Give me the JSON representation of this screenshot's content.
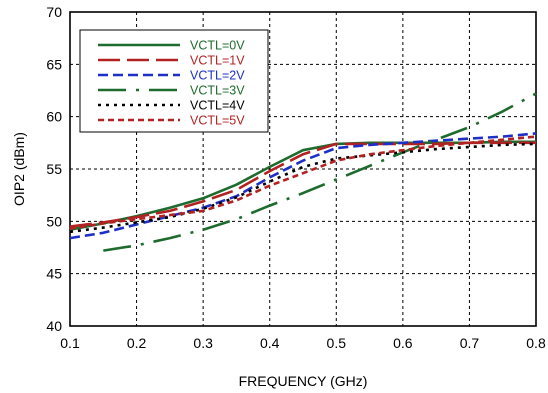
{
  "chart_data": {
    "type": "line",
    "title": "",
    "xlabel": "FREQUENCY (GHz)",
    "ylabel": "OIP2 (dBm)",
    "xlim": [
      0.1,
      0.8
    ],
    "ylim": [
      40,
      70
    ],
    "xticks": [
      "0.1",
      "0.2",
      "0.3",
      "0.4",
      "0.5",
      "0.6",
      "0.7",
      "0.8"
    ],
    "yticks": [
      "40",
      "45",
      "50",
      "55",
      "60",
      "65",
      "70"
    ],
    "grid": true,
    "legend_position": "top-left",
    "series": [
      {
        "name": "VCTL=0V",
        "color": "#1e6b2e",
        "dash": "solid",
        "x": [
          0.1,
          0.15,
          0.2,
          0.25,
          0.3,
          0.35,
          0.4,
          0.45,
          0.5,
          0.55,
          0.6,
          0.65,
          0.7,
          0.75,
          0.8
        ],
        "y": [
          49.2,
          49.8,
          50.5,
          51.3,
          52.2,
          53.5,
          55.2,
          56.8,
          57.4,
          57.5,
          57.5,
          57.5,
          57.5,
          57.6,
          57.6
        ]
      },
      {
        "name": "VCTL=1V",
        "color": "#b22222",
        "dash": "long-dash",
        "x": [
          0.1,
          0.15,
          0.2,
          0.25,
          0.3,
          0.35,
          0.4,
          0.45,
          0.5,
          0.55,
          0.6,
          0.65,
          0.7,
          0.75,
          0.8
        ],
        "y": [
          49.5,
          49.9,
          50.4,
          51.0,
          51.9,
          53.0,
          54.8,
          56.4,
          57.4,
          57.4,
          57.4,
          57.4,
          57.5,
          57.5,
          57.5
        ]
      },
      {
        "name": "VCTL=2V",
        "color": "#1e2fc8",
        "dash": "medium-dash",
        "x": [
          0.1,
          0.15,
          0.2,
          0.25,
          0.3,
          0.35,
          0.4,
          0.45,
          0.5,
          0.55,
          0.6,
          0.65,
          0.7,
          0.75,
          0.8
        ],
        "y": [
          48.4,
          48.9,
          49.7,
          50.5,
          51.3,
          52.4,
          54.2,
          55.8,
          57.0,
          57.3,
          57.5,
          57.7,
          57.9,
          58.1,
          58.4
        ]
      },
      {
        "name": "VCTL=3V",
        "color": "#1e6b2e",
        "dash": "long-dash-dot",
        "x": [
          0.15,
          0.2,
          0.25,
          0.3,
          0.35,
          0.4,
          0.45,
          0.5,
          0.55,
          0.6,
          0.65,
          0.7,
          0.75,
          0.8
        ],
        "y": [
          47.2,
          47.7,
          48.4,
          49.2,
          50.2,
          51.5,
          52.7,
          54.0,
          55.3,
          56.6,
          57.8,
          59.0,
          60.5,
          62.2
        ]
      },
      {
        "name": "VCTL=4V",
        "color": "#000000",
        "dash": "dotted",
        "x": [
          0.1,
          0.15,
          0.2,
          0.25,
          0.3,
          0.35,
          0.4,
          0.45,
          0.5,
          0.55,
          0.6,
          0.65,
          0.7,
          0.75,
          0.8
        ],
        "y": [
          49.0,
          49.4,
          49.9,
          50.4,
          51.2,
          52.3,
          53.8,
          55.2,
          56.0,
          56.3,
          56.6,
          56.9,
          57.1,
          57.3,
          57.4
        ]
      },
      {
        "name": "VCTL=5V",
        "color": "#b22222",
        "dash": "short-dash",
        "x": [
          0.1,
          0.15,
          0.2,
          0.25,
          0.3,
          0.35,
          0.4,
          0.45,
          0.5,
          0.55,
          0.6,
          0.65,
          0.7,
          0.75,
          0.8
        ],
        "y": [
          49.3,
          49.8,
          50.2,
          50.6,
          51.0,
          52.0,
          53.4,
          54.6,
          55.8,
          56.4,
          56.8,
          57.2,
          57.5,
          57.8,
          58.1
        ]
      }
    ]
  }
}
